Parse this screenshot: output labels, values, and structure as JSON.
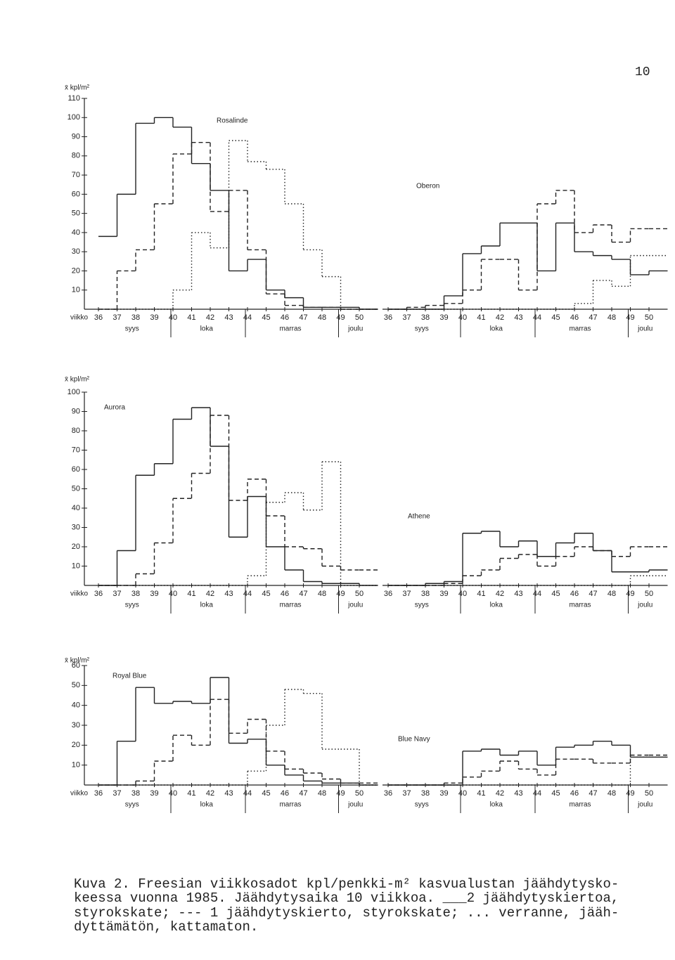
{
  "page_number": "10",
  "chart_data": [
    {
      "type": "step",
      "title": "Rosalinde",
      "ylabel": "x̄ kpl/m²",
      "xlabel": "viikko",
      "categories": [
        36,
        37,
        38,
        39,
        40,
        41,
        42,
        43,
        44,
        45,
        46,
        47,
        48,
        49,
        50
      ],
      "months": [
        "syys",
        "loka",
        "marras",
        "joulu"
      ],
      "ylim": [
        0,
        110
      ],
      "yticks": [
        10,
        20,
        30,
        40,
        50,
        60,
        70,
        80,
        90,
        100,
        110
      ],
      "series": [
        {
          "style": "solid",
          "color": "#222",
          "values": [
            38,
            60,
            97,
            100,
            95,
            76,
            62,
            20,
            26,
            10,
            6,
            1,
            1,
            1,
            0
          ]
        },
        {
          "style": "dashed",
          "color": "#222",
          "values": [
            0,
            20,
            31,
            55,
            81,
            87,
            51,
            62,
            31,
            8,
            2,
            1,
            1,
            0,
            0
          ]
        },
        {
          "style": "dotted",
          "color": "#222",
          "values": [
            0,
            0,
            0,
            0,
            10,
            40,
            32,
            88,
            77,
            73,
            55,
            31,
            17,
            0,
            0
          ]
        }
      ]
    },
    {
      "type": "step",
      "title": "Oberon",
      "categories": [
        36,
        37,
        38,
        39,
        40,
        41,
        42,
        43,
        44,
        45,
        46,
        47,
        48,
        49,
        50
      ],
      "months": [
        "syys",
        "loka",
        "marras",
        "joulu"
      ],
      "ylim": [
        0,
        110
      ],
      "series": [
        {
          "style": "solid",
          "color": "#222",
          "values": [
            0,
            0,
            0,
            7,
            29,
            33,
            45,
            45,
            20,
            45,
            30,
            28,
            26,
            18,
            20
          ]
        },
        {
          "style": "dashed",
          "color": "#222",
          "values": [
            0,
            1,
            2,
            3,
            10,
            26,
            26,
            10,
            55,
            62,
            40,
            44,
            35,
            42,
            42
          ]
        },
        {
          "style": "dotted",
          "color": "#222",
          "values": [
            0,
            0,
            0,
            0,
            0,
            0,
            0,
            0,
            0,
            0,
            3,
            15,
            12,
            28,
            28
          ]
        }
      ]
    },
    {
      "type": "step",
      "title": "Aurora",
      "ylabel": "x̄ kpl/m²",
      "xlabel": "viikko",
      "categories": [
        36,
        37,
        38,
        39,
        40,
        41,
        42,
        43,
        44,
        45,
        46,
        47,
        48,
        49,
        50
      ],
      "months": [
        "syys",
        "loka",
        "marras",
        "joulu"
      ],
      "ylim": [
        0,
        100
      ],
      "yticks": [
        10,
        20,
        30,
        40,
        50,
        60,
        70,
        80,
        90,
        100
      ],
      "series": [
        {
          "style": "solid",
          "color": "#222",
          "values": [
            0,
            18,
            57,
            63,
            86,
            92,
            72,
            25,
            46,
            20,
            8,
            2,
            1,
            1,
            0
          ]
        },
        {
          "style": "dashed",
          "color": "#222",
          "values": [
            0,
            0,
            6,
            22,
            45,
            58,
            88,
            44,
            55,
            36,
            20,
            19,
            10,
            8,
            8
          ]
        },
        {
          "style": "dotted",
          "color": "#222",
          "values": [
            0,
            0,
            0,
            0,
            0,
            0,
            0,
            0,
            5,
            43,
            48,
            39,
            64,
            0,
            0
          ]
        }
      ]
    },
    {
      "type": "step",
      "title": "Athene",
      "categories": [
        36,
        37,
        38,
        39,
        40,
        41,
        42,
        43,
        44,
        45,
        46,
        47,
        48,
        49,
        50
      ],
      "months": [
        "syys",
        "loka",
        "marras",
        "joulu"
      ],
      "ylim": [
        0,
        100
      ],
      "series": [
        {
          "style": "solid",
          "color": "#222",
          "values": [
            0,
            0,
            1,
            2,
            27,
            28,
            20,
            23,
            15,
            22,
            27,
            18,
            7,
            7,
            8
          ]
        },
        {
          "style": "dashed",
          "color": "#222",
          "values": [
            0,
            0,
            0,
            1,
            5,
            8,
            14,
            16,
            10,
            15,
            20,
            18,
            15,
            20,
            20
          ]
        },
        {
          "style": "dotted",
          "color": "#222",
          "values": [
            0,
            0,
            0,
            0,
            0,
            0,
            0,
            0,
            0,
            0,
            0,
            0,
            0,
            5,
            5
          ]
        }
      ]
    },
    {
      "type": "step",
      "title": "Royal Blue",
      "ylabel": "x̄ kpl/m²",
      "xlabel": "viikko",
      "categories": [
        36,
        37,
        38,
        39,
        40,
        41,
        42,
        43,
        44,
        45,
        46,
        47,
        48,
        49,
        50
      ],
      "months": [
        "syys",
        "loka",
        "marras",
        "joulu"
      ],
      "ylim": [
        0,
        60
      ],
      "yticks": [
        10,
        20,
        30,
        40,
        50,
        60
      ],
      "series": [
        {
          "style": "solid",
          "color": "#222",
          "values": [
            0,
            22,
            49,
            41,
            42,
            41,
            54,
            21,
            23,
            10,
            5,
            2,
            1,
            1,
            0
          ]
        },
        {
          "style": "dashed",
          "color": "#222",
          "values": [
            0,
            0,
            2,
            12,
            25,
            20,
            43,
            26,
            33,
            17,
            8,
            6,
            3,
            1,
            1
          ]
        },
        {
          "style": "dotted",
          "color": "#222",
          "values": [
            0,
            0,
            0,
            0,
            0,
            0,
            0,
            0,
            7,
            30,
            48,
            46,
            18,
            18,
            0
          ]
        }
      ]
    },
    {
      "type": "step",
      "title": "Blue Navy",
      "categories": [
        36,
        37,
        38,
        39,
        40,
        41,
        42,
        43,
        44,
        45,
        46,
        47,
        48,
        49,
        50
      ],
      "months": [
        "syys",
        "loka",
        "marras",
        "joulu"
      ],
      "ylim": [
        0,
        60
      ],
      "series": [
        {
          "style": "solid",
          "color": "#222",
          "values": [
            0,
            0,
            0,
            0,
            17,
            18,
            15,
            17,
            10,
            19,
            20,
            22,
            20,
            14,
            14
          ]
        },
        {
          "style": "dashed",
          "color": "#222",
          "values": [
            0,
            0,
            0,
            1,
            4,
            7,
            12,
            8,
            5,
            13,
            13,
            11,
            11,
            15,
            15
          ]
        },
        {
          "style": "dotted",
          "color": "#222",
          "values": [
            0,
            0,
            0,
            0,
            0,
            0,
            0,
            0,
            0,
            0,
            0,
            0,
            0,
            14,
            14
          ]
        }
      ]
    }
  ],
  "caption": [
    "Kuva 2.  Freesian viikkosadot kpl/penkki-m² kasvualustan jäähdytysko-",
    "keessa vuonna 1985. Jäähdytysaika 10 viikkoa. ___2 jäähdytyskiertoa,",
    "styrokskate; --- 1 jäähdytyskierto, styrokskate; ... verranne, jääh-",
    "dyttämätön, kattamaton."
  ]
}
